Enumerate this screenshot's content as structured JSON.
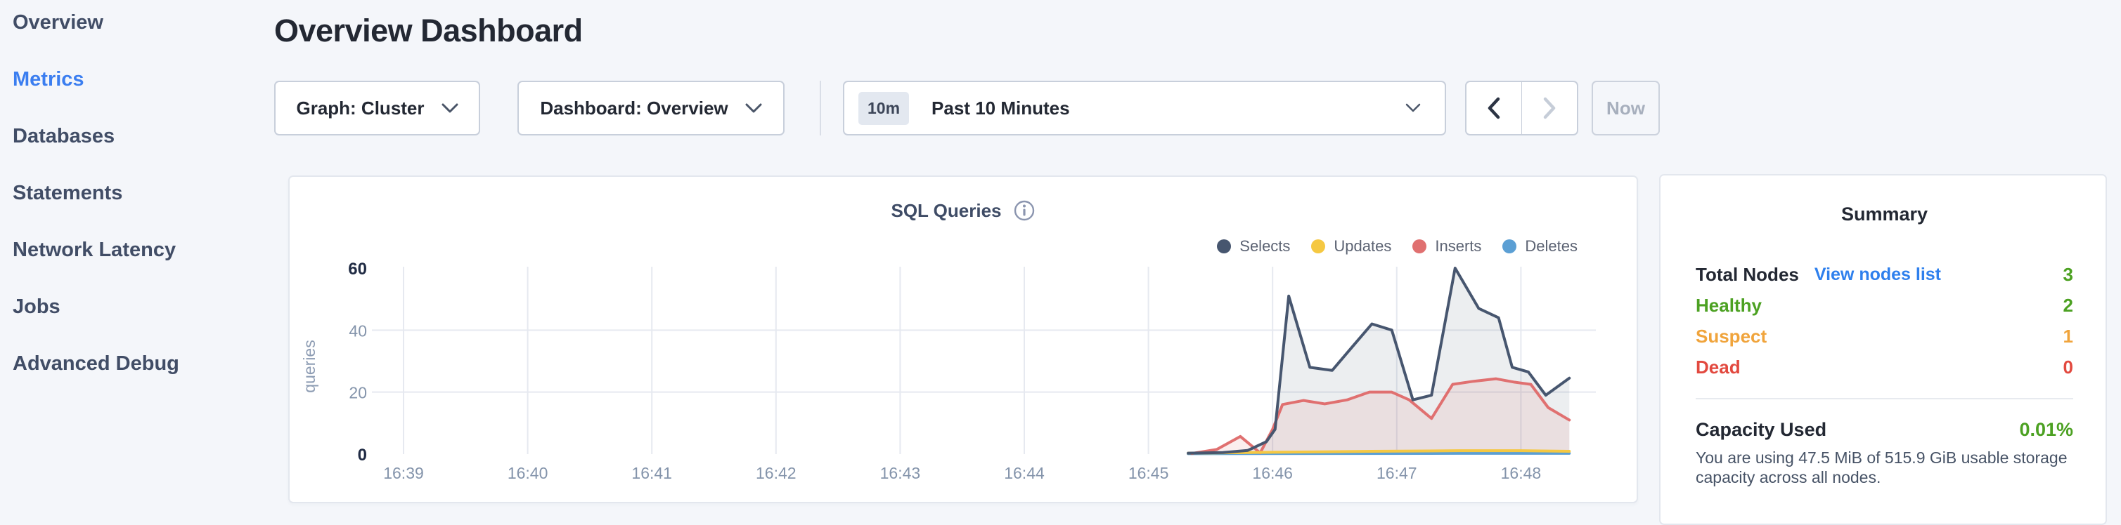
{
  "sidebar": {
    "items": [
      {
        "label": "Overview",
        "active": false
      },
      {
        "label": "Metrics",
        "active": true
      },
      {
        "label": "Databases",
        "active": false
      },
      {
        "label": "Statements",
        "active": false
      },
      {
        "label": "Network Latency",
        "active": false
      },
      {
        "label": "Jobs",
        "active": false
      },
      {
        "label": "Advanced Debug",
        "active": false
      }
    ]
  },
  "header": {
    "title": "Overview Dashboard"
  },
  "toolbar": {
    "graph_dropdown": "Graph: Cluster",
    "dashboard_dropdown": "Dashboard: Overview",
    "time_window_badge": "10m",
    "time_window_label": "Past 10 Minutes",
    "now_button": "Now"
  },
  "chart_card": {
    "title": "SQL Queries",
    "legend": [
      {
        "label": "Selects",
        "color": "#47566F"
      },
      {
        "label": "Updates",
        "color": "#F5C842"
      },
      {
        "label": "Inserts",
        "color": "#E07070"
      },
      {
        "label": "Deletes",
        "color": "#5B9FD4"
      }
    ]
  },
  "chart_data": {
    "type": "area",
    "title": "SQL Queries",
    "ylabel": "queries",
    "x_axis": {
      "unit": "minutes since 16:39",
      "tick_labels": [
        "16:39",
        "16:40",
        "16:41",
        "16:42",
        "16:43",
        "16:44",
        "16:45",
        "16:46",
        "16:47",
        "16:48"
      ]
    },
    "y_axis": {
      "ticks": [
        0,
        20,
        40,
        60
      ],
      "range": [
        0,
        60
      ],
      "gridlines_at": [
        20,
        40
      ]
    },
    "grid": true,
    "legend_position": "top-right",
    "series": [
      {
        "name": "Selects",
        "color": "#47566F",
        "fill": "rgba(71,86,111,0.10)",
        "points": [
          [
            6.32,
            0.3
          ],
          [
            6.6,
            0.5
          ],
          [
            6.8,
            1.2
          ],
          [
            6.95,
            4
          ],
          [
            7.02,
            8
          ],
          [
            7.13,
            51
          ],
          [
            7.3,
            28
          ],
          [
            7.48,
            27
          ],
          [
            7.65,
            35
          ],
          [
            7.8,
            42
          ],
          [
            7.96,
            40
          ],
          [
            8.13,
            17.5
          ],
          [
            8.28,
            19
          ],
          [
            8.47,
            60
          ],
          [
            8.66,
            47
          ],
          [
            8.82,
            44
          ],
          [
            8.93,
            28
          ],
          [
            9.06,
            26.5
          ],
          [
            9.2,
            19
          ],
          [
            9.39,
            24.5
          ]
        ]
      },
      {
        "name": "Updates",
        "color": "#F5C842",
        "fill": null,
        "points": [
          [
            6.32,
            0.3
          ],
          [
            7.0,
            0.6
          ],
          [
            7.8,
            0.9
          ],
          [
            8.5,
            1.1
          ],
          [
            9.0,
            1.1
          ],
          [
            9.39,
            0.9
          ]
        ]
      },
      {
        "name": "Inserts",
        "color": "#E07070",
        "fill": "rgba(224,112,112,0.12)",
        "points": [
          [
            6.35,
            0.2
          ],
          [
            6.55,
            1.5
          ],
          [
            6.74,
            5.7
          ],
          [
            6.9,
            0.4
          ],
          [
            7.0,
            8
          ],
          [
            7.08,
            16
          ],
          [
            7.25,
            17.3
          ],
          [
            7.42,
            16.2
          ],
          [
            7.6,
            17.5
          ],
          [
            7.78,
            20
          ],
          [
            7.96,
            20
          ],
          [
            8.1,
            17.5
          ],
          [
            8.28,
            11.5
          ],
          [
            8.45,
            22.5
          ],
          [
            8.62,
            23.5
          ],
          [
            8.8,
            24.3
          ],
          [
            8.95,
            23.2
          ],
          [
            9.08,
            22.5
          ],
          [
            9.22,
            15
          ],
          [
            9.39,
            11
          ]
        ]
      },
      {
        "name": "Deletes",
        "color": "#5B9FD4",
        "fill": null,
        "points": [
          [
            6.32,
            0.15
          ],
          [
            7.5,
            0.2
          ],
          [
            8.5,
            0.25
          ],
          [
            9.39,
            0.25
          ]
        ]
      }
    ]
  },
  "summary": {
    "title": "Summary",
    "rows": [
      {
        "label": "Total Nodes",
        "link": "View nodes list",
        "value": "3",
        "label_color": "dark",
        "value_color": "green"
      },
      {
        "label": "Healthy",
        "value": "2",
        "label_color": "green",
        "value_color": "green"
      },
      {
        "label": "Suspect",
        "value": "1",
        "label_color": "orange",
        "value_color": "orange"
      },
      {
        "label": "Dead",
        "value": "0",
        "label_color": "red",
        "value_color": "red"
      }
    ],
    "capacity": {
      "label": "Capacity Used",
      "value": "0.01%",
      "value_color": "green",
      "description": "You are using 47.5 MiB of 515.9 GiB usable storage capacity across all nodes."
    }
  },
  "colors": {
    "dark": "#232833",
    "green": "#4CA122",
    "orange": "#F0A43C",
    "red": "#E2493F",
    "link_blue": "#2F80ED",
    "active_blue": "#3B7EF0"
  }
}
